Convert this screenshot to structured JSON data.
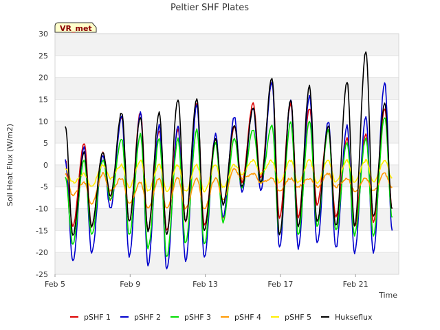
{
  "chart_data": {
    "type": "line",
    "title": "Peltier SHF Plates",
    "xlabel": "Time",
    "ylabel": "Soil Heat Flux (W/m2)",
    "badge": "VR_met",
    "xlim": [
      0,
      18.3
    ],
    "ylim": [
      -25,
      30
    ],
    "grid": "horizontal-bands",
    "legend_position": "bottom",
    "x_ticks": [
      {
        "x": 0,
        "label": "Feb 5"
      },
      {
        "x": 4,
        "label": "Feb 9"
      },
      {
        "x": 8,
        "label": "Feb 13"
      },
      {
        "x": 12,
        "label": "Feb 17"
      },
      {
        "x": 16,
        "label": "Feb 21"
      }
    ],
    "y_ticks": [
      -25,
      -20,
      -15,
      -10,
      -5,
      0,
      5,
      10,
      15,
      20,
      25,
      30
    ],
    "x_sampling": "daily values at local max (x = day + 0.55) and min (x = day + 0.95)",
    "series": [
      {
        "name": "pSHF 1",
        "color": "#dd0000",
        "peaks": [
          1,
          5,
          3,
          11,
          12,
          8,
          8,
          14,
          6,
          9,
          14,
          19,
          14,
          13,
          8,
          6,
          7,
          13
        ],
        "troughs": [
          -14,
          -14,
          -8,
          -13,
          -15,
          -15,
          -13,
          -14,
          -12,
          -4,
          -3,
          -12,
          -12,
          -9,
          -12,
          -14,
          -13,
          -10
        ]
      },
      {
        "name": "pSHF 2",
        "color": "#0000cc",
        "peaks": [
          1,
          4,
          2,
          11,
          12,
          9,
          9,
          14,
          7,
          11,
          13,
          19,
          15,
          16,
          10,
          9,
          11,
          19
        ],
        "troughs": [
          -22,
          -20,
          -10,
          -21,
          -23,
          -24,
          -22,
          -21,
          -12,
          -6,
          -6,
          -19,
          -19,
          -18,
          -19,
          -20,
          -20,
          -15
        ]
      },
      {
        "name": "pSHF 3",
        "color": "#00dd00",
        "peaks": [
          -3,
          1,
          1,
          6,
          7,
          6,
          6,
          8,
          5,
          6,
          8,
          9,
          10,
          10,
          8,
          5,
          6,
          11
        ],
        "troughs": [
          -18,
          -16,
          -8,
          -16,
          -19,
          -21,
          -18,
          -18,
          -13,
          -5,
          -4,
          -16,
          -16,
          -14,
          -15,
          -16,
          -16,
          -12
        ]
      },
      {
        "name": "pSHF 4",
        "color": "#ff9900",
        "peaks": [
          -2,
          -4,
          -2,
          -3,
          -4,
          -3,
          -3,
          -3,
          -3,
          -1,
          -2,
          -3,
          -3,
          -3,
          -2,
          -3,
          -3,
          -2
        ],
        "troughs": [
          -7,
          -9,
          -6,
          -9,
          -10,
          -10,
          -10,
          -10,
          -8,
          -3,
          -4,
          -6,
          -5,
          -5,
          -5,
          -6,
          -6,
          -5
        ]
      },
      {
        "name": "pSHF 5",
        "color": "#ffee00",
        "peaks": [
          -1,
          -2,
          0,
          0,
          1,
          0,
          0,
          0,
          0,
          0,
          1,
          1,
          1,
          1,
          1,
          1,
          1,
          1
        ],
        "troughs": [
          -4,
          -5,
          -3,
          -5,
          -6,
          -6,
          -6,
          -6,
          -5,
          -2,
          -2,
          -4,
          -4,
          -4,
          -4,
          -4,
          -4,
          -3
        ]
      },
      {
        "name": "Hukseflux",
        "color": "#000000",
        "peaks": [
          9,
          3,
          3,
          12,
          11,
          12,
          15,
          15,
          6,
          9,
          13,
          20,
          15,
          18,
          9,
          19,
          26,
          14
        ],
        "troughs": [
          -16,
          -14,
          -7,
          -13,
          -15,
          -16,
          -13,
          -15,
          -9,
          -5,
          -4,
          -16,
          -14,
          -13,
          -14,
          -14,
          -12,
          -10
        ]
      }
    ]
  }
}
